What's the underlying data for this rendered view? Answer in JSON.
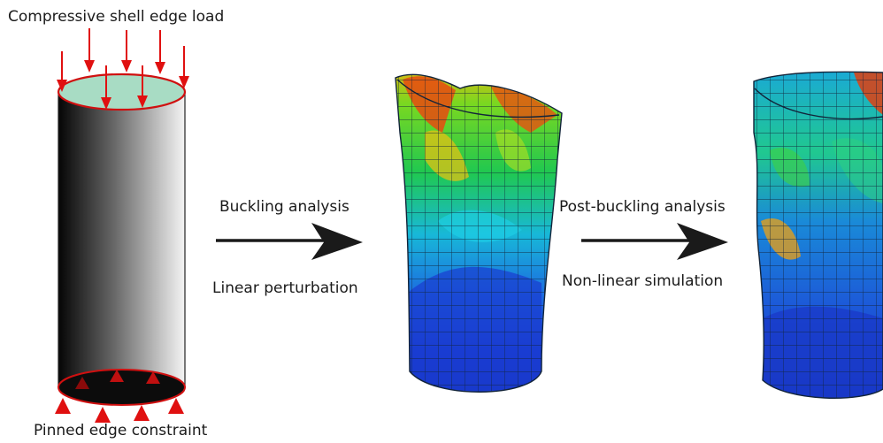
{
  "labels": {
    "top_load": "Compressive shell edge load",
    "bottom_constraint": "Pinned edge constraint",
    "step1_top": "Buckling analysis",
    "step1_bottom": "Linear perturbation",
    "step2_top": "Post-buckling analysis",
    "step2_bottom": "Non-linear simulation"
  },
  "colors": {
    "load_arrow": "#e01010",
    "cap_fill": "#a8dcc4",
    "cap_stroke": "#d01010",
    "flow_arrow": "#1a1a1a",
    "mesh_line": "#1a2a3a",
    "contour_low": "#1a3fd0",
    "contour_mid": "#1fd0e0",
    "contour_high": "#2ed040",
    "contour_peak": "#e03010"
  },
  "icons": [
    "arrow-right-icon"
  ]
}
